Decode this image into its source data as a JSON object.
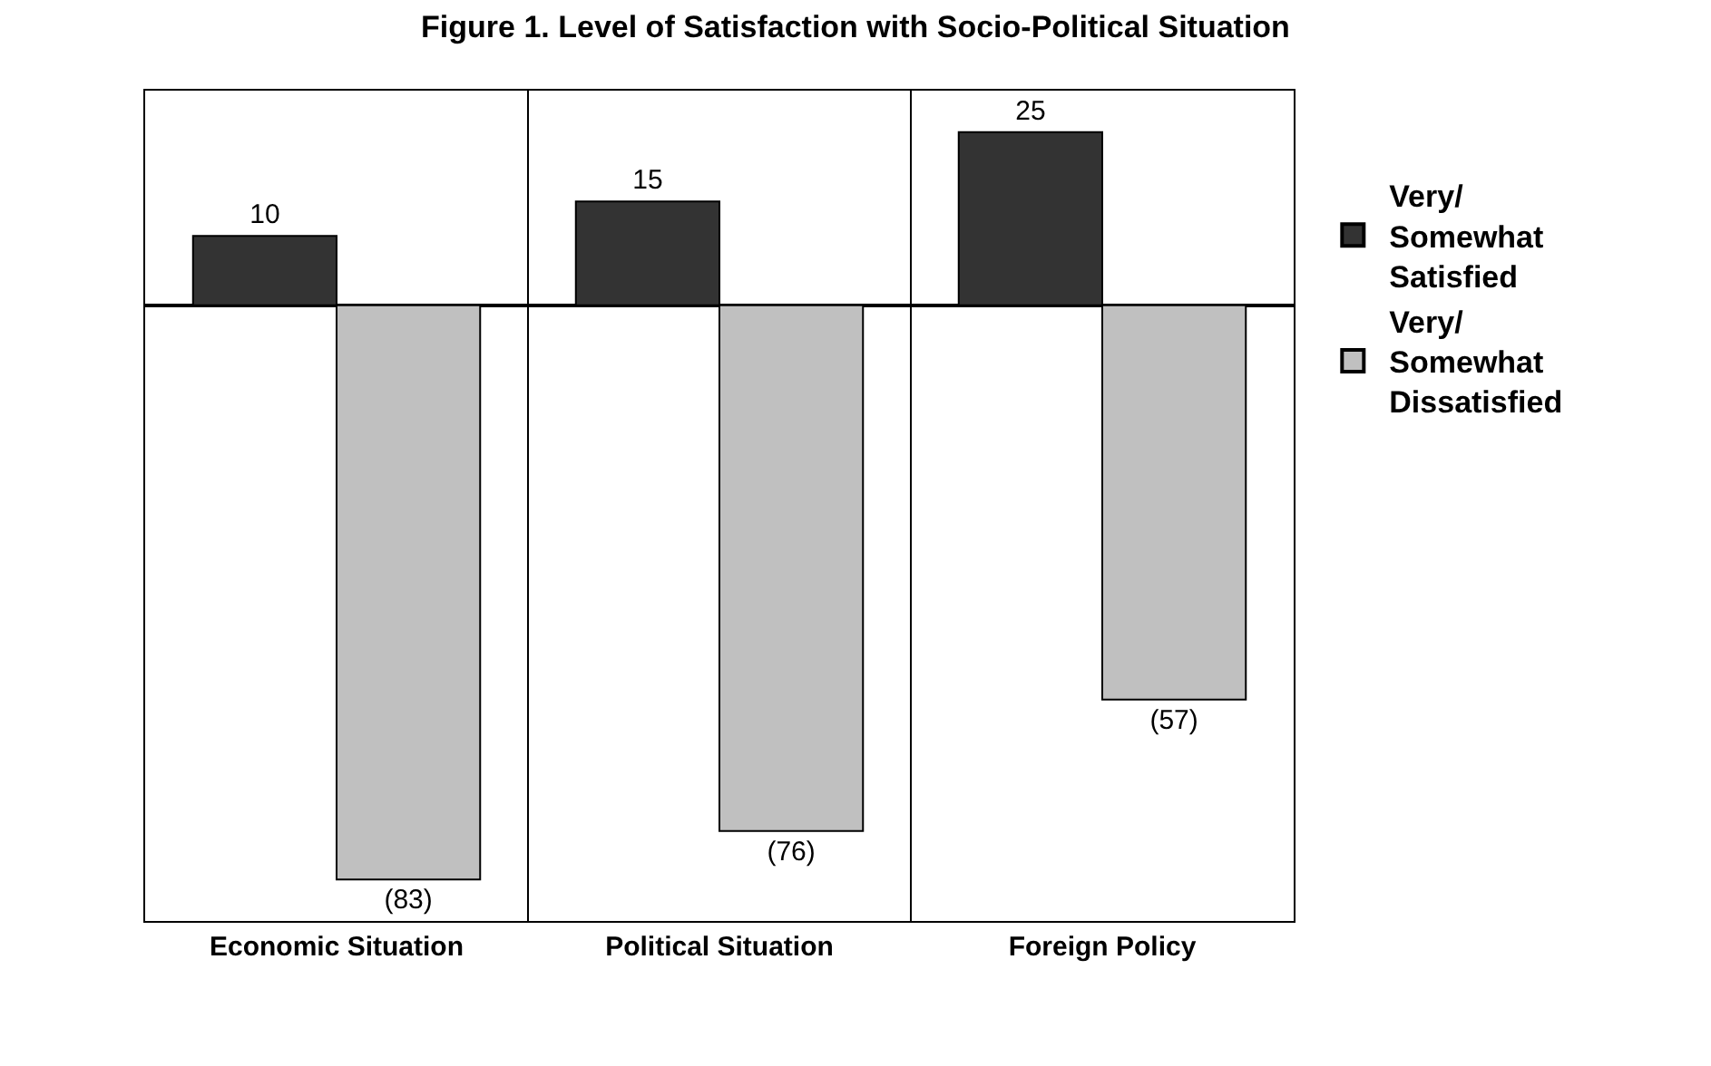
{
  "chart_data": {
    "type": "bar",
    "title": "Figure 1. Level of Satisfaction with Socio-Political Situation",
    "categories": [
      "Economic Situation",
      "Political Situation",
      "Foreign Policy"
    ],
    "series": [
      {
        "name": "Very/ Somewhat Satisfied",
        "color": "#333333",
        "values": [
          10,
          15,
          25
        ],
        "value_labels": [
          "10",
          "15",
          "25"
        ]
      },
      {
        "name": "Very/ Somewhat Dissatisfied",
        "color": "#c0c0c0",
        "values": [
          -83,
          -76,
          -57
        ],
        "value_labels": [
          "(83)",
          "(76)",
          "(57)"
        ]
      }
    ],
    "legend": "right"
  }
}
